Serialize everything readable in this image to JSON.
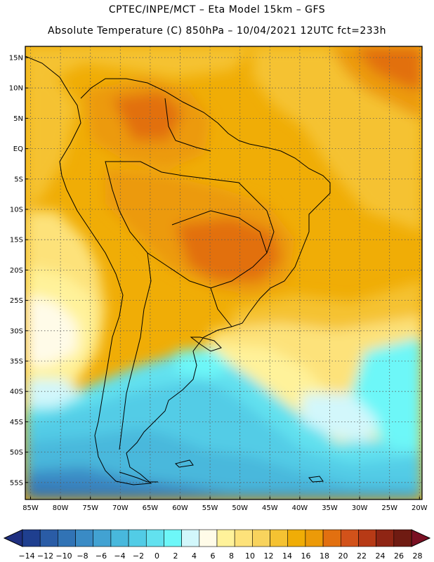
{
  "header": {
    "line1": "CPTEC/INPE/MCT –  Eta Model 15km – GFS",
    "line2": "Absolute Temperature (C) 850hPa – 10/04/2021 12UTC fct=233h"
  },
  "axes": {
    "lat_labels": [
      "15N",
      "10N",
      "5N",
      "EQ",
      "5S",
      "10S",
      "15S",
      "20S",
      "25S",
      "30S",
      "35S",
      "40S",
      "45S",
      "50S",
      "55S"
    ],
    "lon_labels": [
      "85W",
      "80W",
      "75W",
      "70W",
      "65W",
      "60W",
      "55W",
      "50W",
      "45W",
      "40W",
      "35W",
      "30W",
      "25W",
      "20W"
    ]
  },
  "colorbar": {
    "labels": [
      "-14",
      "-12",
      "-10",
      "-8",
      "-6",
      "-4",
      "-2",
      "0",
      "2",
      "4",
      "6",
      "8",
      "10",
      "12",
      "14",
      "16",
      "18",
      "20",
      "22",
      "24",
      "26",
      "28"
    ],
    "colors": [
      "#1f3f8f",
      "#2a5ca6",
      "#3173b5",
      "#3a8bc5",
      "#42a2d2",
      "#48b8dc",
      "#52cce6",
      "#62e1ef",
      "#6df7f8",
      "#d2f7fb",
      "#fffbe8",
      "#fff29a",
      "#fde27a",
      "#f8d35d",
      "#f5c232",
      "#f0ad06",
      "#ec9a08",
      "#e27010",
      "#d2521a",
      "#b73a16",
      "#8f2514",
      "#6f1b12"
    ],
    "under_color": "#1f2f80",
    "over_color": "#7a1023"
  },
  "legend_colors": {
    "frame": "#000000",
    "grid": "#5a5a5a",
    "coast": "#000000"
  }
}
